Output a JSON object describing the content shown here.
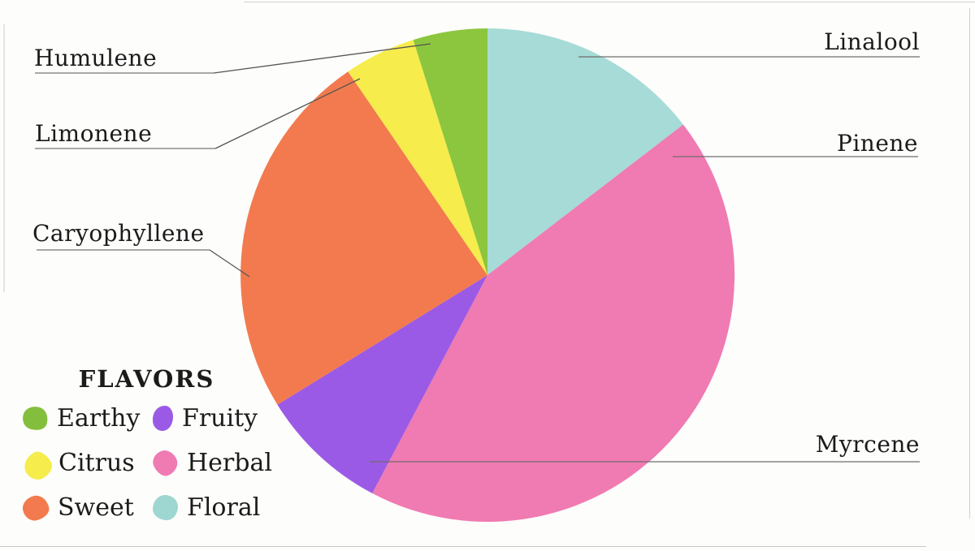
{
  "chart_data": {
    "type": "pie",
    "title": "",
    "legend_position": "bottom-left",
    "legend_title": "FLAVORS",
    "slices": [
      {
        "flavor": "Floral",
        "terpenes": [
          "Linalool"
        ],
        "color": "#a6dbd7",
        "percent": 14.6,
        "start_angle": 0,
        "end_angle": 52.4
      },
      {
        "flavor": "Herbal",
        "terpenes": [
          "Pinene",
          "Myrcene"
        ],
        "color": "#f07ab2",
        "percent": 43.2,
        "start_angle": 52.4,
        "end_angle": 207.8
      },
      {
        "flavor": "Fruity",
        "terpenes": [],
        "color": "#9b5ae5",
        "percent": 8.5,
        "start_angle": 207.8,
        "end_angle": 238.3
      },
      {
        "flavor": "Sweet",
        "terpenes": [
          "Caryophyllene"
        ],
        "color": "#f37a4e",
        "percent": 24.2,
        "start_angle": 238.3,
        "end_angle": 325.6
      },
      {
        "flavor": "Citrus",
        "terpenes": [
          "Limonene"
        ],
        "color": "#f6ec4b",
        "percent": 4.7,
        "start_angle": 325.6,
        "end_angle": 342.5
      },
      {
        "flavor": "Earthy",
        "terpenes": [
          "Humulene"
        ],
        "color": "#8cc63e",
        "percent": 4.9,
        "start_angle": 342.5,
        "end_angle": 360
      }
    ],
    "callouts": [
      {
        "label": "Humulene",
        "points_to": "Earthy"
      },
      {
        "label": "Limonene",
        "points_to": "Citrus"
      },
      {
        "label": "Caryophyllene",
        "points_to": "Sweet"
      },
      {
        "label": "Linalool",
        "points_to": "Floral"
      },
      {
        "label": "Pinene",
        "points_to": "Herbal"
      },
      {
        "label": "Myrcene",
        "points_to": "Herbal"
      }
    ]
  },
  "legend": {
    "title": "FLAVORS",
    "items": [
      {
        "label": "Earthy",
        "color": "#83bf3d"
      },
      {
        "label": "Fruity",
        "color": "#9b5ae5"
      },
      {
        "label": "Citrus",
        "color": "#f6ec4b"
      },
      {
        "label": "Herbal",
        "color": "#f07ab2"
      },
      {
        "label": "Sweet",
        "color": "#f37a4e"
      },
      {
        "label": "Floral",
        "color": "#9ed6d1"
      }
    ]
  }
}
